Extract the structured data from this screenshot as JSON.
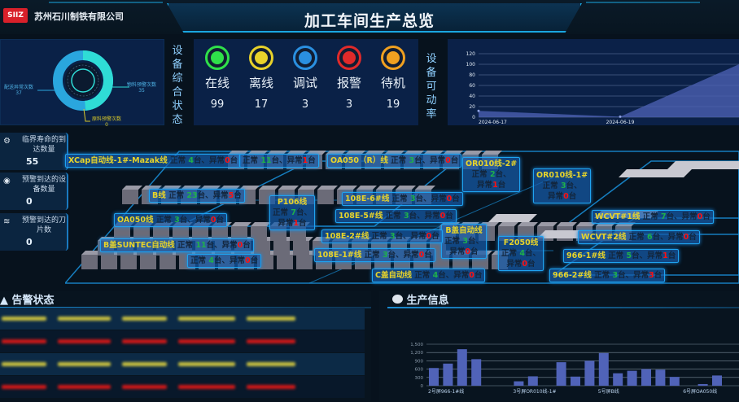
{
  "header": {
    "company": "苏州石川制铁有限公司",
    "logo_text": "SIIZ",
    "title": "加工车间生产总览"
  },
  "donut": {
    "slices": [
      {
        "label": "配送异常次数",
        "value": 37,
        "color": "#2aa6de"
      },
      {
        "label": "物料预警次数",
        "value": 35,
        "color": "#2fdcd6"
      },
      {
        "label": "原料预警次数",
        "value": 0,
        "color": "#d8c82a"
      }
    ]
  },
  "status": {
    "heading": "设备综合状态",
    "items": [
      {
        "label": "在线",
        "value": 99,
        "color": "#2fe04a"
      },
      {
        "label": "离线",
        "value": 17,
        "color": "#e8d22a"
      },
      {
        "label": "调试",
        "value": 3,
        "color": "#2a8fe0"
      },
      {
        "label": "报警",
        "value": 3,
        "color": "#e02a2a"
      },
      {
        "label": "待机",
        "value": 19,
        "color": "#f0a020"
      }
    ]
  },
  "availability": {
    "heading": "设备可动率"
  },
  "chart_data": [
    {
      "type": "area",
      "x": [
        "2024-06-17",
        "2024-06-19",
        ""
      ],
      "values": [
        12,
        1,
        100
      ],
      "ylim": [
        0,
        120
      ],
      "yticks": [
        0,
        20,
        40,
        60,
        80,
        100,
        120
      ],
      "grid": true,
      "color": "#4a5fb0"
    },
    {
      "type": "bar",
      "categories": [
        "2号屏966-1#线",
        "",
        "",
        "",
        "",
        "",
        "3号屏OR010线-1#",
        "",
        "",
        "",
        "",
        "",
        "5号屏B线",
        "",
        "",
        "",
        "",
        "",
        "6号屏OA050线",
        "",
        ""
      ],
      "values": [
        640,
        800,
        1320,
        960,
        0,
        0,
        160,
        340,
        0,
        850,
        330,
        900,
        1180,
        450,
        540,
        600,
        580,
        320,
        0,
        60,
        370
      ],
      "ylim": [
        0,
        1500
      ],
      "yticks": [
        "0",
        "300",
        "600",
        "900",
        "1,200",
        "1,500"
      ],
      "grid": true,
      "color": "#5063b8"
    }
  ],
  "cards": [
    {
      "label": "临界寿命的到达数量",
      "value": "55",
      "icon": "gears-icon"
    },
    {
      "label": "预警到达的设备数量",
      "value": "0",
      "icon": "shield-icon"
    },
    {
      "label": "预警到达的刀片数",
      "value": "0",
      "icon": "layers-icon"
    }
  ],
  "lines": [
    {
      "name": "XCap自动线-1#-Mazak线",
      "ok": 4,
      "ng": 0
    },
    {
      "name": "",
      "ok": 11,
      "ng": 1
    },
    {
      "name": "OA050（R）线",
      "ok": 3,
      "ng": 0
    },
    {
      "name": "OR010线-2#",
      "ok": 2,
      "ng": 1
    },
    {
      "name": "OR010线-1#",
      "ok": 3,
      "ng": 0
    },
    {
      "name": "B线",
      "ok": 23,
      "ng": 5
    },
    {
      "name": "P106线",
      "ok": 7,
      "ng": 1
    },
    {
      "name": "108E-6#线",
      "ok": 3,
      "ng": 0
    },
    {
      "name": "108E-5#线",
      "ok": 3,
      "ng": 0
    },
    {
      "name": "OA050线",
      "ok": 3,
      "ng": 0
    },
    {
      "name": "WCVT#1线",
      "ok": 7,
      "ng": 0
    },
    {
      "name": "B盖自动线",
      "ok": 3,
      "ng": 0
    },
    {
      "name": "108E-2#线",
      "ok": 3,
      "ng": 0
    },
    {
      "name": "F2050线",
      "ok": 4,
      "ng": 0
    },
    {
      "name": "WCVT#2线",
      "ok": 6,
      "ng": 0
    },
    {
      "name": "B盖SUNTEC自动线",
      "ok": 11,
      "ng": 0
    },
    {
      "name": "",
      "ok": 4,
      "ng": 0
    },
    {
      "name": "108E-1#线",
      "ok": 3,
      "ng": 0
    },
    {
      "name": "966-1#线",
      "ok": 5,
      "ng": 1
    },
    {
      "name": "C盖自动线",
      "ok": 4,
      "ng": 0
    },
    {
      "name": "966-2#线",
      "ok": 3,
      "ng": 3
    }
  ],
  "line_words": {
    "ok": "正常",
    "ng": "异常",
    "unit": "台",
    "sep": "、"
  },
  "alarm": {
    "title": "告警状态",
    "row_colors": [
      "#c8c040",
      "#d01818",
      "#c8c040",
      "#d01818"
    ]
  },
  "production": {
    "title": "生产信息"
  }
}
